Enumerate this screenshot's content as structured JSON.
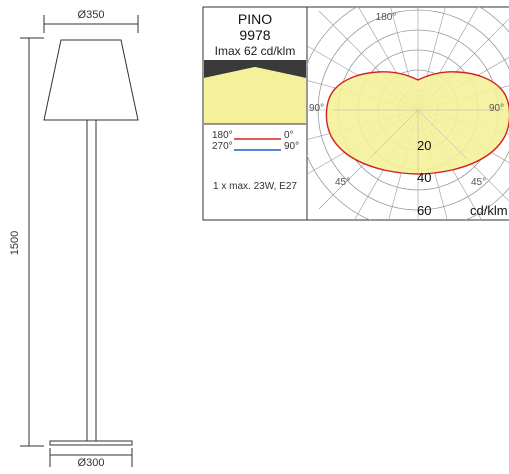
{
  "drawing": {
    "top_diameter": "Ø350",
    "base_diameter": "Ø300",
    "height": "1500"
  },
  "info": {
    "model": "PINO",
    "code": "9978",
    "imax": "Imax 62 cd/klm",
    "legend_red_left": "180°",
    "legend_red_right": "0°",
    "legend_blue_left": "270°",
    "legend_blue_right": "90°",
    "lamp": "1 x max. 23W, E27"
  },
  "polar": {
    "label_top": "180°",
    "label_left": "90°",
    "label_right": "90°",
    "label_45_left": "45°",
    "label_45_right": "45°",
    "ring_20": "20",
    "ring_40": "40",
    "ring_60": "60",
    "unit": "cd/klm"
  },
  "colors": {
    "fill": "#f5f19a",
    "red_curve": "#d42020",
    "blue_curve": "#1f5fbf",
    "dark_band": "#3a3a3a"
  }
}
